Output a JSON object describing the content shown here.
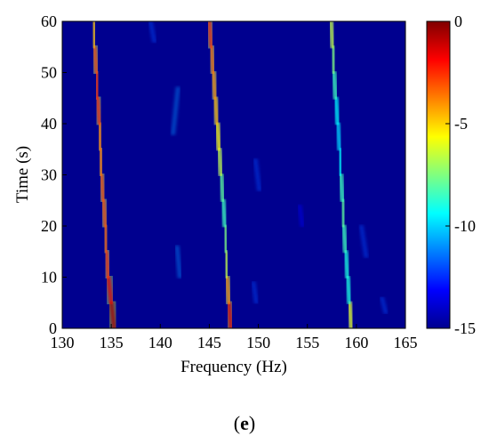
{
  "chart_data": {
    "type": "heatmap",
    "title": "",
    "xlabel": "Frequency (Hz)",
    "ylabel": "Time (s)",
    "xlim": [
      130,
      165
    ],
    "ylim": [
      0,
      60
    ],
    "x_ticks": [
      "130",
      "135",
      "140",
      "145",
      "150",
      "155",
      "160",
      "165"
    ],
    "y_ticks": [
      "0",
      "10",
      "20",
      "30",
      "40",
      "50",
      "60"
    ],
    "colorbar": {
      "range": [
        -15,
        0
      ],
      "ticks": [
        "0",
        "-5",
        "-10",
        "-15"
      ],
      "colormap": "jet"
    },
    "background_value": -15,
    "ridges": [
      {
        "name_in_legend": null,
        "points": [
          [
            135.3,
            0
          ],
          [
            135.0,
            5
          ],
          [
            134.7,
            10
          ],
          [
            134.5,
            15
          ],
          [
            134.4,
            20
          ],
          [
            134.2,
            25
          ],
          [
            134.0,
            30
          ],
          [
            133.9,
            35
          ],
          [
            133.8,
            40
          ],
          [
            133.6,
            45
          ],
          [
            133.5,
            50
          ],
          [
            133.3,
            55
          ],
          [
            133.2,
            60
          ]
        ],
        "peak_values": [
          0,
          -1,
          -2,
          -3,
          -3,
          -3,
          -3,
          -4,
          -3,
          -2,
          -2,
          -4,
          -5
        ]
      },
      {
        "name_in_legend": null,
        "points": [
          [
            147.2,
            0
          ],
          [
            147.0,
            5
          ],
          [
            146.8,
            10
          ],
          [
            146.7,
            15
          ],
          [
            146.6,
            20
          ],
          [
            146.4,
            25
          ],
          [
            146.2,
            30
          ],
          [
            146.0,
            35
          ],
          [
            145.8,
            40
          ],
          [
            145.6,
            45
          ],
          [
            145.4,
            50
          ],
          [
            145.2,
            55
          ],
          [
            145.0,
            60
          ]
        ],
        "peak_values": [
          -1,
          -2,
          -6,
          -7,
          -8,
          -9,
          -7,
          -6,
          -5,
          -4,
          -4,
          -3,
          -2
        ]
      },
      {
        "name_in_legend": null,
        "points": [
          [
            159.5,
            0
          ],
          [
            159.3,
            5
          ],
          [
            159.1,
            10
          ],
          [
            158.9,
            15
          ],
          [
            158.7,
            20
          ],
          [
            158.6,
            25
          ],
          [
            158.4,
            30
          ],
          [
            158.3,
            35
          ],
          [
            158.1,
            40
          ],
          [
            157.9,
            45
          ],
          [
            157.7,
            50
          ],
          [
            157.6,
            55
          ],
          [
            157.4,
            60
          ]
        ],
        "peak_values": [
          -3,
          -9,
          -9,
          -9,
          -8,
          -8,
          -9,
          -10,
          -10,
          -9,
          -8,
          -7,
          -6
        ]
      }
    ],
    "faint_streaks": [
      {
        "x": [
          141.3,
          141.8
        ],
        "y": [
          38,
          47
        ],
        "value": -11
      },
      {
        "x": [
          142.0,
          141.7
        ],
        "y": [
          10,
          16
        ],
        "value": -11
      },
      {
        "x": [
          149.8,
          149.5
        ],
        "y": [
          5,
          9
        ],
        "value": -12
      },
      {
        "x": [
          150.1,
          149.7
        ],
        "y": [
          27,
          33
        ],
        "value": -12
      },
      {
        "x": [
          139.4,
          139.0
        ],
        "y": [
          56,
          60
        ],
        "value": -12
      },
      {
        "x": [
          161.0,
          160.5
        ],
        "y": [
          14,
          20
        ],
        "value": -12
      },
      {
        "x": [
          163.0,
          162.6
        ],
        "y": [
          3,
          6
        ],
        "value": -12
      },
      {
        "x": [
          154.5,
          154.2
        ],
        "y": [
          20,
          24
        ],
        "value": -13
      }
    ]
  },
  "panel_label": "e"
}
